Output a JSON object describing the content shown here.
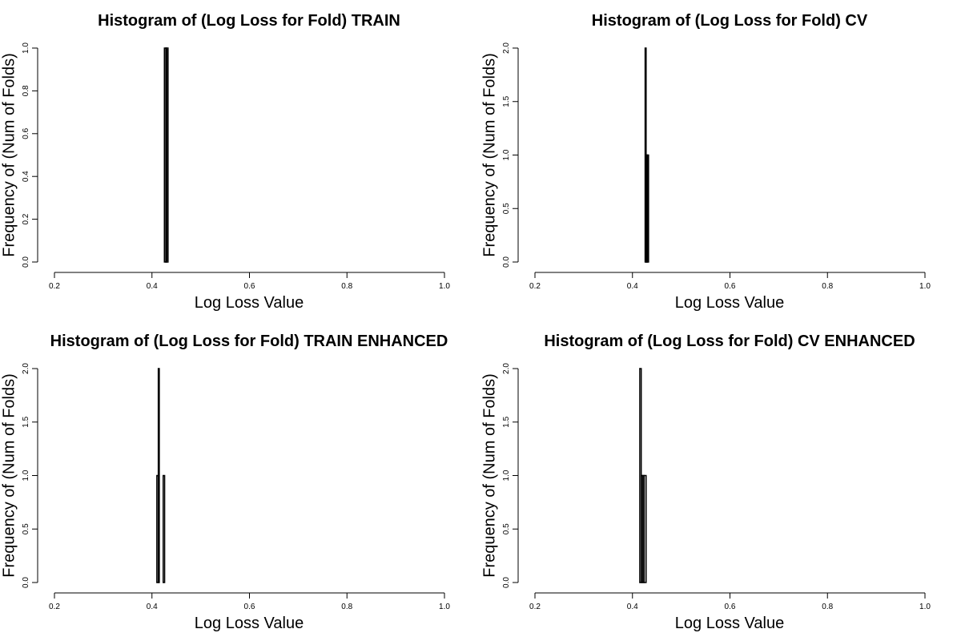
{
  "chart_data": [
    {
      "type": "bar",
      "title": "Histogram of (Log Loss for Fold) TRAIN",
      "xlabel": "Log Loss Value",
      "ylabel": "Frequency of (Num of Folds)",
      "xlim": [
        0.2,
        1.0
      ],
      "ylim": [
        0,
        1.0
      ],
      "xticks": [
        "0.2",
        "0.4",
        "0.6",
        "0.8",
        "1.0"
      ],
      "yticks": [
        "0.0",
        "0.2",
        "0.4",
        "0.6",
        "0.8",
        "1.0"
      ],
      "bars": [
        {
          "x0": 0.4255,
          "x1": 0.4285,
          "count": 1
        },
        {
          "x0": 0.4285,
          "x1": 0.4305,
          "count": 1
        },
        {
          "x0": 0.4305,
          "x1": 0.433,
          "count": 1
        }
      ],
      "grid": false
    },
    {
      "type": "bar",
      "title": "Histogram of (Log Loss for Fold) CV",
      "xlabel": "Log Loss Value",
      "ylabel": "Frequency of (Num of Folds)",
      "xlim": [
        0.2,
        1.0
      ],
      "ylim": [
        0,
        2.0
      ],
      "xticks": [
        "0.2",
        "0.4",
        "0.6",
        "0.8",
        "1.0"
      ],
      "yticks": [
        "0.0",
        "0.5",
        "1.0",
        "1.5",
        "2.0"
      ],
      "bars": [
        {
          "x0": 0.426,
          "x1": 0.428,
          "count": 2
        },
        {
          "x0": 0.428,
          "x1": 0.429,
          "count": 1
        },
        {
          "x0": 0.429,
          "x1": 0.431,
          "count": 1
        },
        {
          "x0": 0.431,
          "x1": 0.433,
          "count": 1
        }
      ],
      "grid": false
    },
    {
      "type": "bar",
      "title": "Histogram of (Log Loss for Fold) TRAIN ENHANCED",
      "xlabel": "Log Loss Value",
      "ylabel": "Frequency of (Num of Folds)",
      "xlim": [
        0.2,
        1.0
      ],
      "ylim": [
        0,
        2.0
      ],
      "xticks": [
        "0.2",
        "0.4",
        "0.6",
        "0.8",
        "1.0"
      ],
      "yticks": [
        "0.0",
        "0.5",
        "1.0",
        "1.5",
        "2.0"
      ],
      "bars": [
        {
          "x0": 0.41,
          "x1": 0.413,
          "count": 1
        },
        {
          "x0": 0.413,
          "x1": 0.415,
          "count": 2
        },
        {
          "x0": 0.415,
          "x1": 0.423,
          "count": 0
        },
        {
          "x0": 0.423,
          "x1": 0.426,
          "count": 1
        }
      ],
      "grid": false
    },
    {
      "type": "bar",
      "title": "Histogram of (Log Loss for Fold) CV ENHANCED",
      "xlabel": "Log Loss Value",
      "ylabel": "Frequency of (Num of Folds)",
      "xlim": [
        0.2,
        1.0
      ],
      "ylim": [
        0,
        2.0
      ],
      "xticks": [
        "0.2",
        "0.4",
        "0.6",
        "0.8",
        "1.0"
      ],
      "yticks": [
        "0.0",
        "0.5",
        "1.0",
        "1.5",
        "2.0"
      ],
      "bars": [
        {
          "x0": 0.415,
          "x1": 0.418,
          "count": 2
        },
        {
          "x0": 0.418,
          "x1": 0.421,
          "count": 1
        },
        {
          "x0": 0.421,
          "x1": 0.424,
          "count": 1
        },
        {
          "x0": 0.424,
          "x1": 0.428,
          "count": 1
        }
      ],
      "grid": false
    }
  ]
}
